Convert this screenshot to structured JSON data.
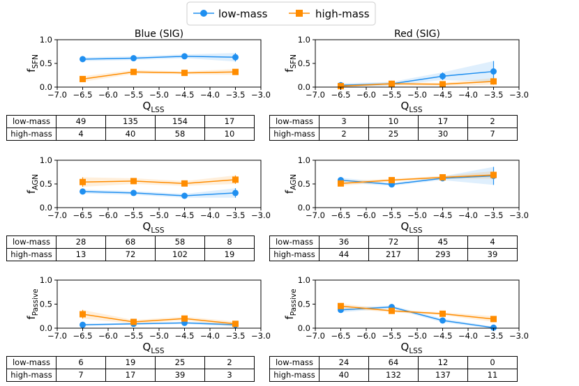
{
  "legend": [
    {
      "name": "low-mass",
      "color": "#1f8ff0"
    },
    {
      "name": "high-mass",
      "color": "#ff8c00"
    }
  ],
  "chart_data": [
    {
      "type": "line",
      "panel": "SFN-blue",
      "title": "Blue (SIG)",
      "ylabel_main": "f",
      "ylabel_sub": "SFN",
      "xlabel_main": "Q",
      "xlabel_sub": "LSS",
      "x": [
        -6.5,
        -5.5,
        -4.5,
        -3.5
      ],
      "xlim": [
        -7.0,
        -3.0
      ],
      "ylim": [
        0.0,
        1.0
      ],
      "xticks": [
        "−7.0",
        "−6.5",
        "−6.0",
        "−5.5",
        "−5.0",
        "−4.5",
        "−4.0",
        "−3.5",
        "−3.0"
      ],
      "yticks": [
        "0.0",
        "0.5",
        "1.0"
      ],
      "series": [
        {
          "name": "low-mass",
          "values": [
            0.59,
            0.61,
            0.65,
            0.63
          ],
          "err": [
            0.04,
            0.04,
            0.04,
            0.09
          ]
        },
        {
          "name": "high-mass",
          "values": [
            0.17,
            0.32,
            0.3,
            0.32
          ],
          "err": [
            0.06,
            0.04,
            0.03,
            0.06
          ]
        }
      ]
    },
    {
      "type": "line",
      "panel": "SFN-red",
      "title": "Red (SIG)",
      "ylabel_main": "f",
      "ylabel_sub": "SFN",
      "xlabel_main": "Q",
      "xlabel_sub": "LSS",
      "x": [
        -6.5,
        -5.5,
        -4.5,
        -3.5
      ],
      "xlim": [
        -7.0,
        -3.0
      ],
      "ylim": [
        0.0,
        1.0
      ],
      "xticks": [
        "−7.0",
        "−6.5",
        "−6.0",
        "−5.5",
        "−5.0",
        "−4.5",
        "−4.0",
        "−3.5",
        "−3.0"
      ],
      "yticks": [
        "0.0",
        "0.5",
        "1.0"
      ],
      "series": [
        {
          "name": "low-mass",
          "values": [
            0.04,
            0.07,
            0.23,
            0.33
          ],
          "err": [
            0.04,
            0.04,
            0.08,
            0.22
          ]
        },
        {
          "name": "high-mass",
          "values": [
            0.02,
            0.07,
            0.06,
            0.12
          ],
          "err": [
            0.02,
            0.03,
            0.03,
            0.07
          ]
        }
      ]
    },
    {
      "type": "line",
      "panel": "AGN-blue",
      "title": "",
      "ylabel_main": "f",
      "ylabel_sub": "AGN",
      "xlabel_main": "Q",
      "xlabel_sub": "LSS",
      "x": [
        -6.5,
        -5.5,
        -4.5,
        -3.5
      ],
      "xlim": [
        -7.0,
        -3.0
      ],
      "ylim": [
        0.0,
        1.0
      ],
      "xticks": [
        "−7.0",
        "−6.5",
        "−6.0",
        "−5.5",
        "−5.0",
        "−4.5",
        "−4.0",
        "−3.5",
        "−3.0"
      ],
      "yticks": [
        "0.0",
        "0.5",
        "1.0"
      ],
      "series": [
        {
          "name": "low-mass",
          "values": [
            0.34,
            0.31,
            0.25,
            0.31
          ],
          "err": [
            0.04,
            0.04,
            0.04,
            0.1
          ]
        },
        {
          "name": "high-mass",
          "values": [
            0.54,
            0.56,
            0.51,
            0.59
          ],
          "err": [
            0.1,
            0.06,
            0.05,
            0.09
          ]
        }
      ]
    },
    {
      "type": "line",
      "panel": "AGN-red",
      "title": "",
      "ylabel_main": "f",
      "ylabel_sub": "AGN",
      "xlabel_main": "Q",
      "xlabel_sub": "LSS",
      "x": [
        -6.5,
        -5.5,
        -4.5,
        -3.5
      ],
      "xlim": [
        -7.0,
        -3.0
      ],
      "ylim": [
        0.0,
        1.0
      ],
      "xticks": [
        "−7.0",
        "−6.5",
        "−6.0",
        "−5.5",
        "−5.0",
        "−4.5",
        "−4.0",
        "−3.5",
        "−3.0"
      ],
      "yticks": [
        "0.0",
        "0.5",
        "1.0"
      ],
      "series": [
        {
          "name": "low-mass",
          "values": [
            0.58,
            0.49,
            0.62,
            0.67
          ],
          "err": [
            0.05,
            0.03,
            0.04,
            0.19
          ]
        },
        {
          "name": "high-mass",
          "values": [
            0.51,
            0.58,
            0.64,
            0.69
          ],
          "err": [
            0.05,
            0.03,
            0.03,
            0.08
          ]
        }
      ]
    },
    {
      "type": "line",
      "panel": "Passive-blue",
      "title": "",
      "ylabel_main": "f",
      "ylabel_sub": "Passive",
      "xlabel_main": "Q",
      "xlabel_sub": "LSS",
      "x": [
        -6.5,
        -5.5,
        -4.5,
        -3.5
      ],
      "xlim": [
        -7.0,
        -3.0
      ],
      "ylim": [
        0.0,
        1.0
      ],
      "xticks": [
        "−7.0",
        "−6.5",
        "−6.0",
        "−5.5",
        "−5.0",
        "−4.5",
        "−4.0",
        "−3.5",
        "−3.0"
      ],
      "yticks": [
        "0.0",
        "0.5",
        "1.0"
      ],
      "series": [
        {
          "name": "low-mass",
          "values": [
            0.07,
            0.09,
            0.11,
            0.07
          ],
          "err": [
            0.02,
            0.02,
            0.02,
            0.04
          ]
        },
        {
          "name": "high-mass",
          "values": [
            0.29,
            0.13,
            0.2,
            0.09
          ],
          "err": [
            0.09,
            0.04,
            0.04,
            0.05
          ]
        }
      ]
    },
    {
      "type": "line",
      "panel": "Passive-red",
      "title": "",
      "ylabel_main": "f",
      "ylabel_sub": "Passive",
      "xlabel_main": "Q",
      "xlabel_sub": "LSS",
      "x": [
        -6.5,
        -5.5,
        -4.5,
        -3.5
      ],
      "xlim": [
        -7.0,
        -3.0
      ],
      "ylim": [
        0.0,
        1.0
      ],
      "xticks": [
        "−7.0",
        "−6.5",
        "−6.0",
        "−5.5",
        "−5.0",
        "−4.5",
        "−4.0",
        "−3.5",
        "−3.0"
      ],
      "yticks": [
        "0.0",
        "0.5",
        "1.0"
      ],
      "series": [
        {
          "name": "low-mass",
          "values": [
            0.38,
            0.44,
            0.16,
            0.01
          ],
          "err": [
            0.05,
            0.03,
            0.04,
            0.02
          ]
        },
        {
          "name": "high-mass",
          "values": [
            0.46,
            0.36,
            0.3,
            0.19
          ],
          "err": [
            0.05,
            0.03,
            0.03,
            0.06
          ]
        }
      ]
    }
  ],
  "tables": {
    "sfn_blue": {
      "rows": [
        {
          "label": "low-mass",
          "values": [
            "49",
            "135",
            "154",
            "17"
          ]
        },
        {
          "label": "high-mass",
          "values": [
            "4",
            "40",
            "58",
            "10"
          ]
        }
      ]
    },
    "sfn_red": {
      "rows": [
        {
          "label": "low-mass",
          "values": [
            "3",
            "10",
            "17",
            "2"
          ]
        },
        {
          "label": "high-mass",
          "values": [
            "2",
            "25",
            "30",
            "7"
          ]
        }
      ]
    },
    "agn_blue": {
      "rows": [
        {
          "label": "low-mass",
          "values": [
            "28",
            "68",
            "58",
            "8"
          ]
        },
        {
          "label": "high-mass",
          "values": [
            "13",
            "72",
            "102",
            "19"
          ]
        }
      ]
    },
    "agn_red": {
      "rows": [
        {
          "label": "low-mass",
          "values": [
            "36",
            "72",
            "45",
            "4"
          ]
        },
        {
          "label": "high-mass",
          "values": [
            "44",
            "217",
            "293",
            "39"
          ]
        }
      ]
    },
    "passive_blue": {
      "rows": [
        {
          "label": "low-mass",
          "values": [
            "6",
            "19",
            "25",
            "2"
          ]
        },
        {
          "label": "high-mass",
          "values": [
            "7",
            "17",
            "39",
            "3"
          ]
        }
      ]
    },
    "passive_red": {
      "rows": [
        {
          "label": "low-mass",
          "values": [
            "24",
            "64",
            "12",
            "0"
          ]
        },
        {
          "label": "high-mass",
          "values": [
            "40",
            "132",
            "137",
            "11"
          ]
        }
      ]
    }
  }
}
